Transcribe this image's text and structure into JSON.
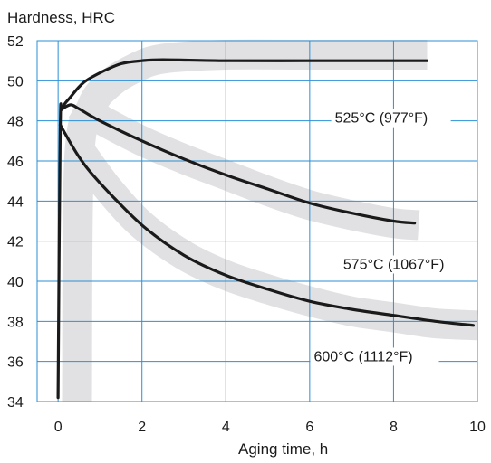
{
  "chart_data": {
    "type": "line",
    "title": "",
    "ylabel": "Hardness, HRC",
    "xlabel": "Aging time, h",
    "xlim": [
      -0.5,
      10
    ],
    "ylim": [
      34,
      52
    ],
    "xticks": [
      0,
      2,
      4,
      6,
      8,
      10
    ],
    "yticks": [
      34,
      36,
      38,
      40,
      42,
      44,
      46,
      48,
      50,
      52
    ],
    "grid": true,
    "colors": {
      "grid": "#2b8fd6",
      "band": "#e1e1e3",
      "line": "#1a1a1a"
    },
    "series": [
      {
        "name": "525°C (977°F)",
        "x": [
          0,
          0.05,
          0.1,
          0.3,
          0.6,
          1.0,
          1.5,
          2.0,
          2.5,
          4,
          6,
          8,
          8.8
        ],
        "y": [
          34.2,
          47.5,
          48.6,
          49.2,
          49.9,
          50.4,
          50.85,
          51.0,
          51.05,
          51.0,
          51.0,
          51.0,
          51.0
        ]
      },
      {
        "name": "575°C (1067°F)",
        "x": [
          0.1,
          0.3,
          0.5,
          1.0,
          2.0,
          3.0,
          4.0,
          5.0,
          6.0,
          7.0,
          8.0,
          8.5
        ],
        "y": [
          48.6,
          48.8,
          48.6,
          48.0,
          47.0,
          46.1,
          45.3,
          44.6,
          43.9,
          43.4,
          43.0,
          42.9
        ]
      },
      {
        "name": "600°C (1112°F)",
        "x": [
          0.05,
          0.5,
          1.0,
          2.0,
          3.0,
          4.0,
          5.0,
          6.0,
          7.0,
          8.0,
          9.0,
          9.9
        ],
        "y": [
          47.8,
          46.2,
          44.9,
          42.8,
          41.3,
          40.3,
          39.6,
          39.0,
          38.6,
          38.3,
          38.0,
          37.8
        ]
      }
    ],
    "bands": [
      {
        "for": "525°C (977°F)",
        "x": [
          0.45,
          0.5,
          0.8,
          1.2,
          1.8,
          2.5,
          4,
          6,
          8,
          8.8
        ],
        "y": [
          34.0,
          46.0,
          48.7,
          49.8,
          50.6,
          51.1,
          51.3,
          51.3,
          51.3,
          51.3
        ]
      },
      {
        "for": "575°C (1067°F)",
        "x": [
          0.45,
          0.9,
          2.0,
          3.0,
          4.0,
          5.0,
          6.0,
          7.0,
          8.0,
          8.6
        ],
        "y": [
          48.8,
          48.2,
          47.0,
          46.1,
          45.3,
          44.5,
          43.8,
          43.3,
          42.9,
          42.8
        ]
      },
      {
        "for": "600°C (1112°F)",
        "x": [
          0.6,
          1.2,
          2.0,
          3.0,
          4.0,
          5.0,
          6.0,
          7.0,
          8.0,
          9.0,
          10.0
        ],
        "y": [
          46.3,
          44.6,
          42.8,
          41.3,
          40.3,
          39.6,
          39.0,
          38.5,
          38.2,
          37.9,
          37.8
        ]
      }
    ],
    "annotations": [
      {
        "text": "525°C (977°F)",
        "x": 6.6,
        "y": 48.0
      },
      {
        "text": "575°C (1067°F)",
        "x": 6.8,
        "y": 40.7
      },
      {
        "text": "600°C (1112°F)",
        "x": 6.1,
        "y": 36.1
      }
    ]
  }
}
